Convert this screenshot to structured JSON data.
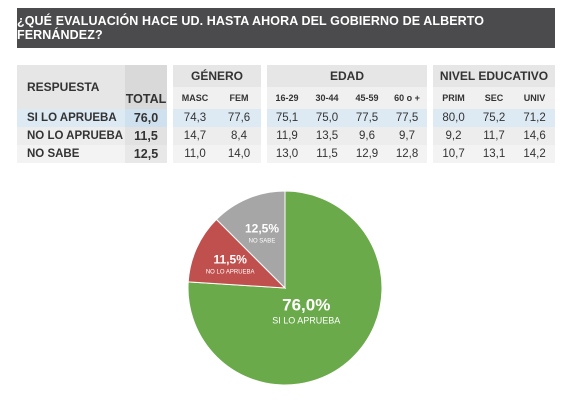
{
  "title": "¿QUÉ EVALUACIÓN HACE UD. HASTA AHORA DEL GOBIERNO DE ALBERTO FERNÁNDEZ?",
  "table": {
    "respuesta_label": "RESPUESTA",
    "total_label": "TOTAL",
    "groups": [
      {
        "label": "GÉNERO",
        "subs": [
          "MASC",
          "FEM"
        ]
      },
      {
        "label": "EDAD",
        "subs": [
          "16-29",
          "30-44",
          "45-59",
          "60 o +"
        ]
      },
      {
        "label": "NIVEL EDUCATIVO",
        "subs": [
          "PRIM",
          "SEC",
          "UNIV"
        ]
      }
    ],
    "rows": [
      {
        "label": "SI LO APRUEBA",
        "total": "76,0",
        "genero": [
          "74,3",
          "77,6"
        ],
        "edad": [
          "75,1",
          "75,0",
          "77,5",
          "77,5"
        ],
        "nivel": [
          "80,0",
          "75,2",
          "71,2"
        ]
      },
      {
        "label": "NO LO APRUEBA",
        "total": "11,5",
        "genero": [
          "14,7",
          "8,4"
        ],
        "edad": [
          "11,9",
          "13,5",
          "9,6",
          "9,7"
        ],
        "nivel": [
          "9,2",
          "11,7",
          "14,6"
        ]
      },
      {
        "label": "NO SABE",
        "total": "12,5",
        "genero": [
          "11,0",
          "14,0"
        ],
        "edad": [
          "13,0",
          "11,5",
          "12,9",
          "12,8"
        ],
        "nivel": [
          "10,7",
          "13,1",
          "14,2"
        ]
      }
    ]
  },
  "chart_data": {
    "type": "pie",
    "slices": [
      {
        "label": "SI LO APRUEBA",
        "value": 76.0,
        "display": "76,0%",
        "color": "#6aaa4b"
      },
      {
        "label": "NO LO APRUEBA",
        "value": 11.5,
        "display": "11,5%",
        "color": "#c0504d"
      },
      {
        "label": "NO SABE",
        "value": 12.5,
        "display": "12,5%",
        "color": "#a6a6a6"
      }
    ]
  }
}
